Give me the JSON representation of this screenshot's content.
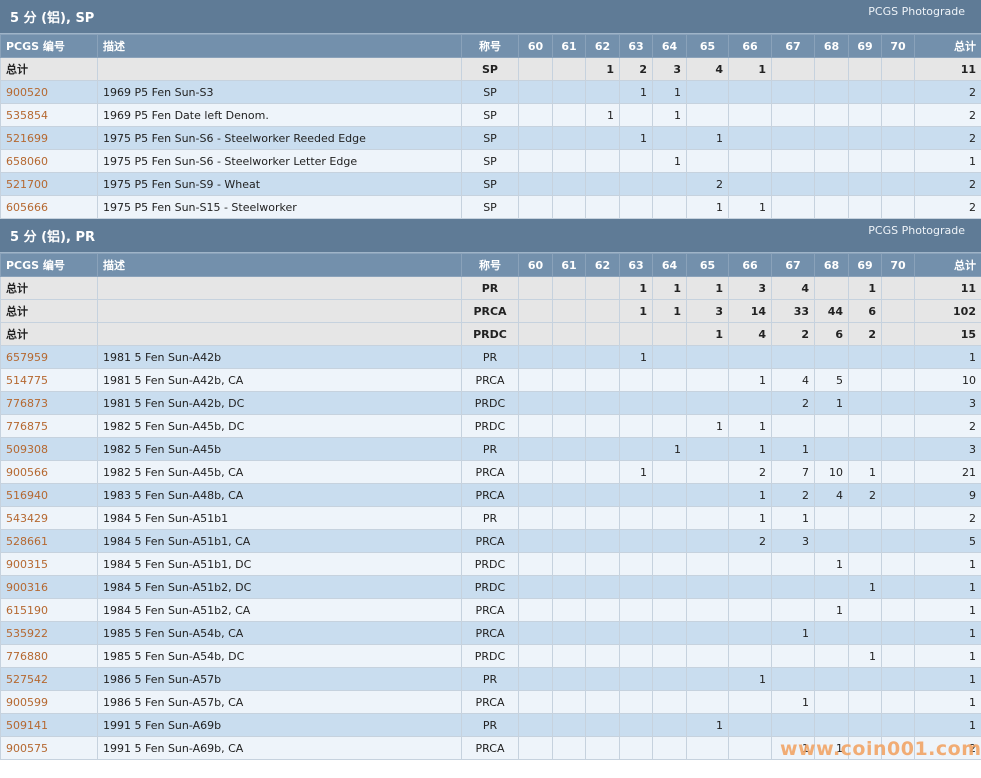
{
  "columns": [
    "PCGS 编号",
    "描述",
    "称号",
    "60",
    "61",
    "62",
    "63",
    "64",
    "65",
    "66",
    "67",
    "68",
    "69",
    "70",
    "总计"
  ],
  "sections": [
    {
      "title": "5 分 (铝), SP",
      "brand": "PCGS Photograde",
      "totals": [
        [
          "总计",
          "",
          "SP",
          "",
          "",
          "1",
          "2",
          "3",
          "4",
          "1",
          "",
          "",
          "",
          "",
          "11"
        ]
      ],
      "rows": [
        [
          "900520",
          "1969 P5 Fen Sun-S3",
          "SP",
          "",
          "",
          "",
          "1",
          "1",
          "",
          "",
          "",
          "",
          "",
          "",
          "2"
        ],
        [
          "535854",
          "1969 P5 Fen Date left Denom.",
          "SP",
          "",
          "",
          "1",
          "",
          "1",
          "",
          "",
          "",
          "",
          "",
          "",
          "2"
        ],
        [
          "521699",
          "1975 P5 Fen Sun-S6 - Steelworker Reeded Edge",
          "SP",
          "",
          "",
          "",
          "1",
          "",
          "1",
          "",
          "",
          "",
          "",
          "",
          "2"
        ],
        [
          "658060",
          "1975 P5 Fen Sun-S6 - Steelworker Letter Edge",
          "SP",
          "",
          "",
          "",
          "",
          "1",
          "",
          "",
          "",
          "",
          "",
          "",
          "1"
        ],
        [
          "521700",
          "1975 P5 Fen Sun-S9 - Wheat",
          "SP",
          "",
          "",
          "",
          "",
          "",
          "2",
          "",
          "",
          "",
          "",
          "",
          "2"
        ],
        [
          "605666",
          "1975 P5 Fen Sun-S15 - Steelworker",
          "SP",
          "",
          "",
          "",
          "",
          "",
          "1",
          "1",
          "",
          "",
          "",
          "",
          "2"
        ]
      ]
    },
    {
      "title": "5 分 (铝), PR",
      "brand": "PCGS Photograde",
      "totals": [
        [
          "总计",
          "",
          "PR",
          "",
          "",
          "",
          "1",
          "1",
          "1",
          "3",
          "4",
          "",
          "1",
          "",
          "11"
        ],
        [
          "总计",
          "",
          "PRCA",
          "",
          "",
          "",
          "1",
          "1",
          "3",
          "14",
          "33",
          "44",
          "6",
          "",
          "102"
        ],
        [
          "总计",
          "",
          "PRDC",
          "",
          "",
          "",
          "",
          "",
          "1",
          "4",
          "2",
          "6",
          "2",
          "",
          "15"
        ]
      ],
      "rows": [
        [
          "657959",
          "1981 5 Fen Sun-A42b",
          "PR",
          "",
          "",
          "",
          "1",
          "",
          "",
          "",
          "",
          "",
          "",
          "",
          "1"
        ],
        [
          "514775",
          "1981 5 Fen Sun-A42b, CA",
          "PRCA",
          "",
          "",
          "",
          "",
          "",
          "",
          "1",
          "4",
          "5",
          "",
          "",
          "10"
        ],
        [
          "776873",
          "1981 5 Fen Sun-A42b, DC",
          "PRDC",
          "",
          "",
          "",
          "",
          "",
          "",
          "",
          "2",
          "1",
          "",
          "",
          "3"
        ],
        [
          "776875",
          "1982 5 Fen Sun-A45b, DC",
          "PRDC",
          "",
          "",
          "",
          "",
          "",
          "1",
          "1",
          "",
          "",
          "",
          "",
          "2"
        ],
        [
          "509308",
          "1982 5 Fen Sun-A45b",
          "PR",
          "",
          "",
          "",
          "",
          "1",
          "",
          "1",
          "1",
          "",
          "",
          "",
          "3"
        ],
        [
          "900566",
          "1982 5 Fen Sun-A45b, CA",
          "PRCA",
          "",
          "",
          "",
          "1",
          "",
          "",
          "2",
          "7",
          "10",
          "1",
          "",
          "21"
        ],
        [
          "516940",
          "1983 5 Fen Sun-A48b, CA",
          "PRCA",
          "",
          "",
          "",
          "",
          "",
          "",
          "1",
          "2",
          "4",
          "2",
          "",
          "9"
        ],
        [
          "543429",
          "1984 5 Fen Sun-A51b1",
          "PR",
          "",
          "",
          "",
          "",
          "",
          "",
          "1",
          "1",
          "",
          "",
          "",
          "2"
        ],
        [
          "528661",
          "1984 5 Fen Sun-A51b1, CA",
          "PRCA",
          "",
          "",
          "",
          "",
          "",
          "",
          "2",
          "3",
          "",
          "",
          "",
          "5"
        ],
        [
          "900315",
          "1984 5 Fen Sun-A51b1, DC",
          "PRDC",
          "",
          "",
          "",
          "",
          "",
          "",
          "",
          "",
          "1",
          "",
          "",
          "1"
        ],
        [
          "900316",
          "1984 5 Fen Sun-A51b2, DC",
          "PRDC",
          "",
          "",
          "",
          "",
          "",
          "",
          "",
          "",
          "",
          "1",
          "",
          "1"
        ],
        [
          "615190",
          "1984 5 Fen Sun-A51b2, CA",
          "PRCA",
          "",
          "",
          "",
          "",
          "",
          "",
          "",
          "",
          "1",
          "",
          "",
          "1"
        ],
        [
          "535922",
          "1985 5 Fen Sun-A54b, CA",
          "PRCA",
          "",
          "",
          "",
          "",
          "",
          "",
          "",
          "1",
          "",
          "",
          "",
          "1"
        ],
        [
          "776880",
          "1985 5 Fen Sun-A54b, DC",
          "PRDC",
          "",
          "",
          "",
          "",
          "",
          "",
          "",
          "",
          "",
          "1",
          "",
          "1"
        ],
        [
          "527542",
          "1986 5 Fen Sun-A57b",
          "PR",
          "",
          "",
          "",
          "",
          "",
          "",
          "1",
          "",
          "",
          "",
          "",
          "1"
        ],
        [
          "900599",
          "1986 5 Fen Sun-A57b, CA",
          "PRCA",
          "",
          "",
          "",
          "",
          "",
          "",
          "",
          "1",
          "",
          "",
          "",
          "1"
        ],
        [
          "509141",
          "1991 5 Fen Sun-A69b",
          "PR",
          "",
          "",
          "",
          "",
          "",
          "1",
          "",
          "",
          "",
          "",
          "",
          "1"
        ],
        [
          "900575",
          "1991 5 Fen Sun-A69b, CA",
          "PRCA",
          "",
          "",
          "",
          "",
          "",
          "",
          "",
          "1",
          "1",
          "",
          "",
          "2"
        ]
      ]
    }
  ],
  "watermark": "www.coin001.com",
  "colors": {
    "header": "#5f7b96",
    "columnHeader": "#7390ac",
    "rowOdd": "#c9ddef",
    "rowEven": "#eef4fa",
    "total": "#e6e6e6",
    "link": "#b56830"
  }
}
